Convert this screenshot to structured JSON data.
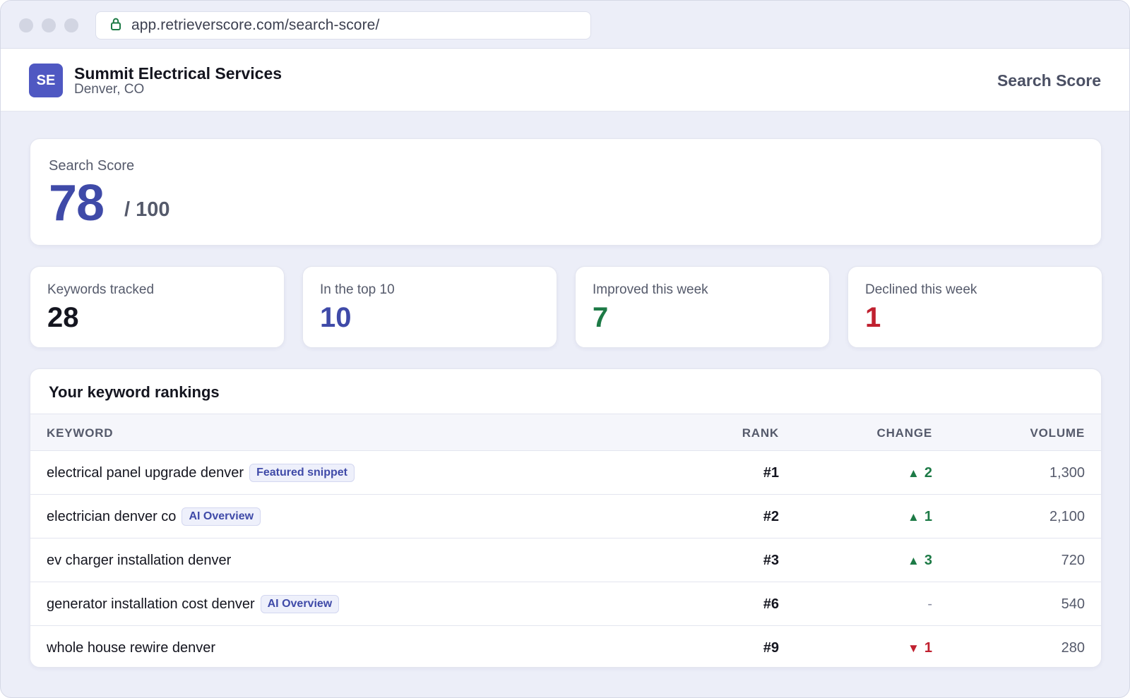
{
  "browser": {
    "url": "app.retrieverscore.com/search-score/"
  },
  "header": {
    "avatar_initials": "SE",
    "business_name": "Summit Electrical Services",
    "location": "Denver, CO",
    "nav_title": "Search Score"
  },
  "score": {
    "label": "Search Score",
    "value": "78",
    "max": "/ 100"
  },
  "stats": [
    {
      "label": "Keywords tracked",
      "value": "28",
      "color": "#14151f"
    },
    {
      "label": "In the top 10",
      "value": "10",
      "color": "#3f4aa8"
    },
    {
      "label": "Improved this week",
      "value": "7",
      "color": "#1d7a46"
    },
    {
      "label": "Declined this week",
      "value": "1",
      "color": "#c0202f"
    }
  ],
  "rankings": {
    "title": "Your keyword rankings",
    "columns": {
      "keyword": "KEYWORD",
      "rank": "RANK",
      "change": "CHANGE",
      "volume": "VOLUME"
    },
    "rows": [
      {
        "keyword": "electrical panel upgrade denver",
        "badge": "Featured snippet",
        "rank": "#1",
        "change_dir": "up",
        "change_icon": "▲",
        "change": "2",
        "volume": "1,300"
      },
      {
        "keyword": "electrician denver co",
        "badge": "AI Overview",
        "rank": "#2",
        "change_dir": "up",
        "change_icon": "▲",
        "change": "1",
        "volume": "2,100"
      },
      {
        "keyword": "ev charger installation denver",
        "badge": "",
        "rank": "#3",
        "change_dir": "up",
        "change_icon": "▲",
        "change": "3",
        "volume": "720"
      },
      {
        "keyword": "generator installation cost denver",
        "badge": "AI Overview",
        "rank": "#6",
        "change_dir": "flat",
        "change_icon": "",
        "change": "-",
        "volume": "540"
      },
      {
        "keyword": "whole house rewire denver",
        "badge": "",
        "rank": "#9",
        "change_dir": "down",
        "change_icon": "▼",
        "change": "1",
        "volume": "280"
      }
    ]
  },
  "colors": {
    "accent": "#3f4aa8",
    "avatar": "#4f58c2",
    "up": "#1d7a46",
    "down": "#c0202f",
    "background": "#eceef8"
  }
}
